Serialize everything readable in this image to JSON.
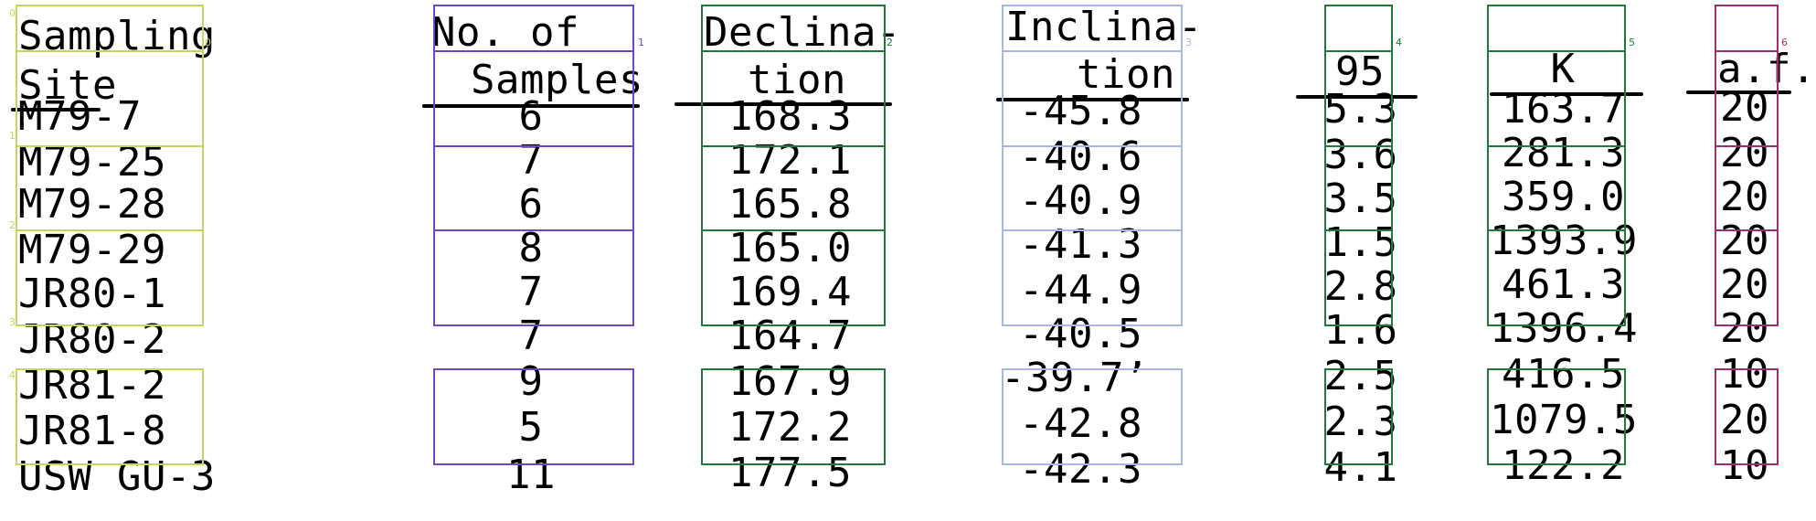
{
  "table": {
    "headers": {
      "site": [
        "Sampling",
        "Site"
      ],
      "samples": [
        "No. of",
        "Samples"
      ],
      "declination": [
        "Declina-",
        "tion"
      ],
      "inclination": [
        "Inclina-",
        "tion"
      ],
      "alpha95": [
        "",
        "95"
      ],
      "k": [
        "",
        "K"
      ],
      "af": [
        "",
        "a.f."
      ]
    },
    "rows": [
      {
        "site": "M79-7",
        "samples": "6",
        "declination": "168.3",
        "inclination": "-45.8",
        "alpha95": "5.3",
        "k": "163.7",
        "af": "20"
      },
      {
        "site": "M79-25",
        "samples": "7",
        "declination": "172.1",
        "inclination": "-40.6",
        "alpha95": "3.6",
        "k": "281.3",
        "af": "20"
      },
      {
        "site": "M79-28",
        "samples": "6",
        "declination": "165.8",
        "inclination": "-40.9",
        "alpha95": "3.5",
        "k": "359.0",
        "af": "20"
      },
      {
        "site": "M79-29",
        "samples": "8",
        "declination": "165.0",
        "inclination": "-41.3",
        "alpha95": "1.5",
        "k": "1393.9",
        "af": "20"
      },
      {
        "site": "JR80-1",
        "samples": "7",
        "declination": "169.4",
        "inclination": "-44.9",
        "alpha95": "2.8",
        "k": "461.3",
        "af": "20"
      },
      {
        "site": "JR80-2",
        "samples": "7",
        "declination": "164.7",
        "inclination": "-40.5",
        "alpha95": "1.6",
        "k": "1396.4",
        "af": "20"
      },
      {
        "site": "JR81-2",
        "samples": "9",
        "declination": "167.9",
        "inclination": "-39.7’",
        "alpha95": "2.5",
        "k": "416.5",
        "af": "10"
      },
      {
        "site": "JR81-8",
        "samples": "5",
        "declination": "172.2",
        "inclination": "-42.8",
        "alpha95": "2.3",
        "k": "1079.5",
        "af": "20"
      },
      {
        "site": "USW GU-3",
        "samples": "11",
        "declination": "177.5",
        "inclination": "-42.3",
        "alpha95": "4.1",
        "k": "122.2",
        "af": "10"
      }
    ],
    "overlay": {
      "colors": {
        "site": "#c6d65a",
        "samples": "#6f45c7",
        "declination": "#1f7a3b",
        "inclination": "#a6b8ea",
        "alpha95": "#1f7a3b",
        "k": "#1f7a3b",
        "af": "#9b2f73"
      },
      "block_ids": [
        "0",
        "1",
        "2",
        "3",
        "4",
        "5",
        "6"
      ],
      "group_ids": [
        "0",
        "1",
        "2",
        "3",
        "4"
      ]
    }
  }
}
